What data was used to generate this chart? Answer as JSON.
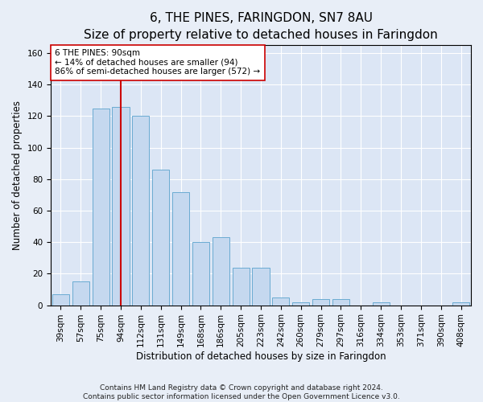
{
  "title": "6, THE PINES, FARINGDON, SN7 8AU",
  "subtitle": "Size of property relative to detached houses in Faringdon",
  "xlabel": "Distribution of detached houses by size in Faringdon",
  "ylabel": "Number of detached properties",
  "categories": [
    "39sqm",
    "57sqm",
    "75sqm",
    "94sqm",
    "112sqm",
    "131sqm",
    "149sqm",
    "168sqm",
    "186sqm",
    "205sqm",
    "223sqm",
    "242sqm",
    "260sqm",
    "279sqm",
    "297sqm",
    "316sqm",
    "334sqm",
    "353sqm",
    "371sqm",
    "390sqm",
    "408sqm"
  ],
  "values": [
    7,
    15,
    125,
    126,
    120,
    86,
    72,
    40,
    43,
    24,
    24,
    5,
    2,
    4,
    4,
    0,
    2,
    0,
    0,
    0,
    2
  ],
  "bar_color": "#c5d8ef",
  "bar_edge_color": "#6aabd2",
  "vline_x_index": 3,
  "vline_color": "#cc0000",
  "annotation_text": "6 THE PINES: 90sqm\n← 14% of detached houses are smaller (94)\n86% of semi-detached houses are larger (572) →",
  "annotation_box_color": "#ffffff",
  "annotation_box_edge": "#cc0000",
  "ylim": [
    0,
    165
  ],
  "yticks": [
    0,
    20,
    40,
    60,
    80,
    100,
    120,
    140,
    160
  ],
  "background_color": "#e8eef7",
  "plot_background": "#dce6f5",
  "footer": "Contains HM Land Registry data © Crown copyright and database right 2024.\nContains public sector information licensed under the Open Government Licence v3.0.",
  "title_fontsize": 11,
  "xlabel_fontsize": 8.5,
  "ylabel_fontsize": 8.5,
  "footer_fontsize": 6.5,
  "tick_fontsize": 7.5,
  "annot_fontsize": 7.5
}
